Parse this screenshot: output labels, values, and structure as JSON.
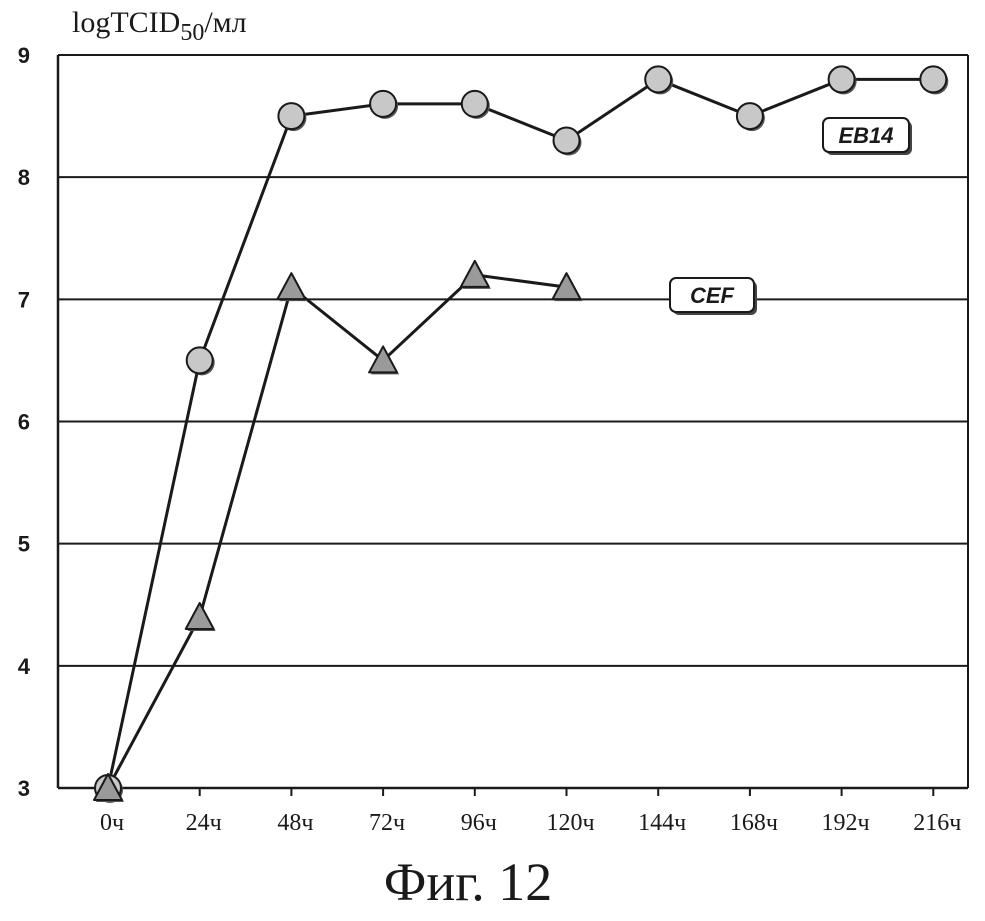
{
  "chart_data": {
    "type": "line",
    "ylabel": "logTCID50/мл",
    "ylabel_main": "logTCID",
    "ylabel_sub": "50",
    "ylabel_unit": "/мл",
    "xlabel": "",
    "caption": "Фиг. 12",
    "categories": [
      "0ч",
      "24ч",
      "48ч",
      "72ч",
      "96ч",
      "120ч",
      "144ч",
      "168ч",
      "192ч",
      "216ч"
    ],
    "y_ticks": [
      "3",
      "4",
      "5",
      "6",
      "7",
      "8",
      "9"
    ],
    "ylim": [
      3,
      9
    ],
    "grid": true,
    "series": [
      {
        "name": "EB14",
        "marker": "circle",
        "values": [
          3.0,
          6.5,
          8.5,
          8.6,
          8.6,
          8.3,
          8.8,
          8.5,
          8.8,
          8.8
        ]
      },
      {
        "name": "CEF",
        "marker": "triangle",
        "values": [
          3.0,
          4.4,
          7.1,
          6.5,
          7.2,
          7.1,
          null,
          null,
          null,
          null
        ]
      }
    ],
    "colors": {
      "line": "#1a1a1a",
      "grid": "#1a1a1a",
      "circle_fill": "#c8c8c8",
      "triangle_fill": "#9a9a9a",
      "background": "#ffffff"
    }
  }
}
